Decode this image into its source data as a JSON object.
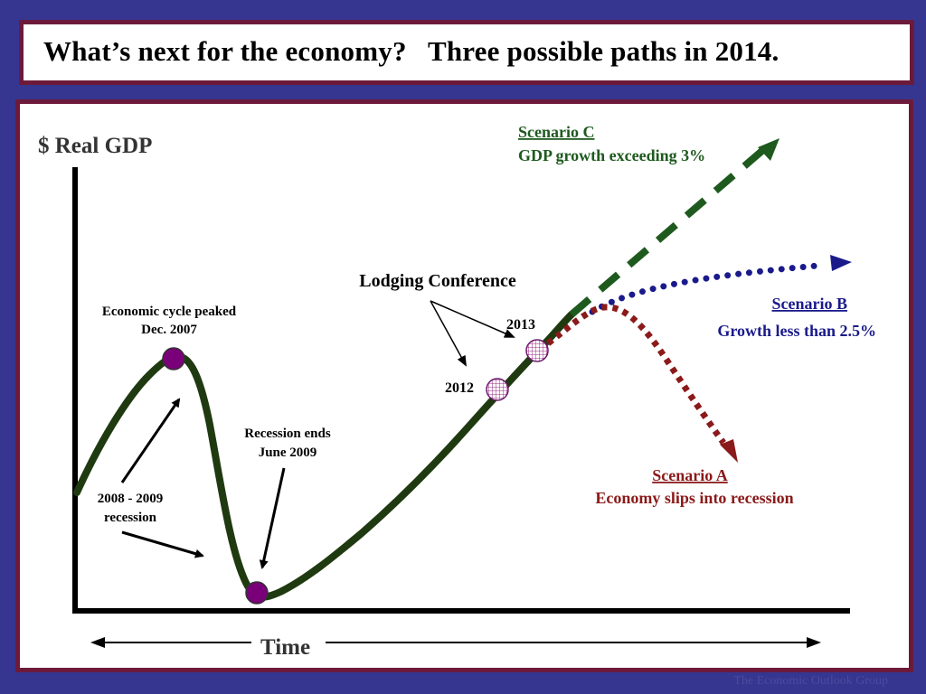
{
  "slide": {
    "title": "What’s next for the economy?   Three possible paths in 2014.",
    "footer": "The Economic Outlook Group"
  },
  "diagram": {
    "y_axis_label": "$ Real GDP",
    "x_axis_label": "Time",
    "annotations": {
      "peak_line1": "Economic cycle peaked",
      "peak_line2": "Dec. 2007",
      "recession_line1": "2008 - 2009",
      "recession_line2": "recession",
      "recession_end_line1": "Recession ends",
      "recession_end_line2": "June 2009",
      "conference": "Lodging Conference",
      "year_2012": "2012",
      "year_2013": "2013"
    },
    "scenarios": {
      "a": {
        "name": "Scenario A",
        "desc": "Economy slips into recession",
        "color": "#8b1a1a"
      },
      "b": {
        "name": "Scenario B",
        "desc": "Growth less than 2.5%",
        "color": "#1a1a8b"
      },
      "c": {
        "name": "Scenario C",
        "desc": "GDP growth exceeding 3%",
        "color": "#1e5a1e"
      }
    },
    "colors": {
      "main_line": "#1f3a10",
      "event_marker": "#7a007a",
      "conference_marker": "#9a2a8a"
    }
  }
}
